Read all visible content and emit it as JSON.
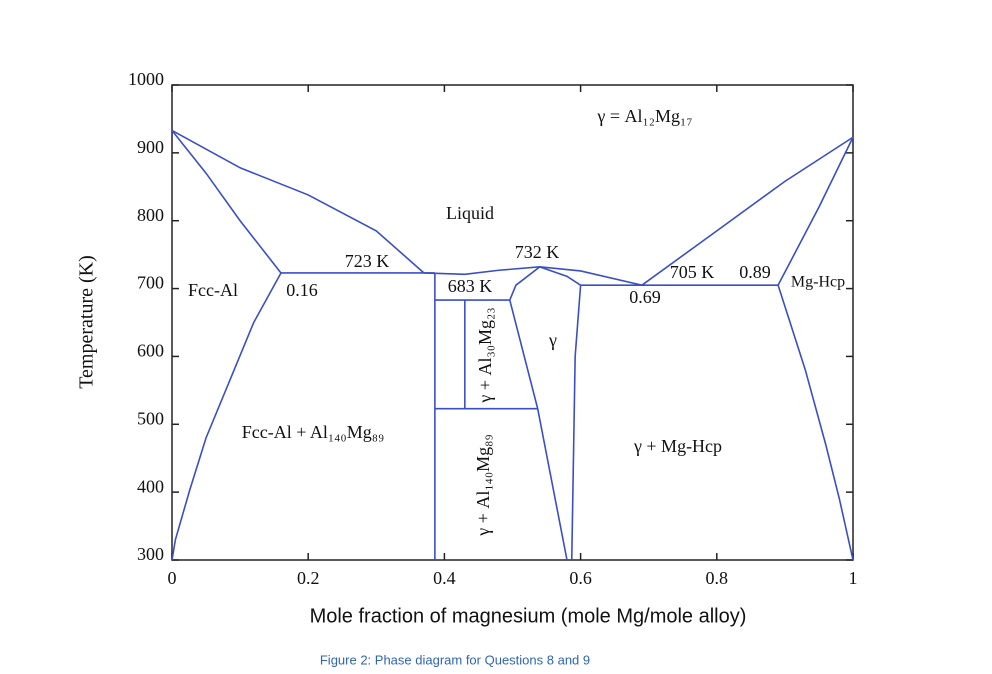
{
  "chart_data": {
    "type": "phase",
    "x_label": "Mole fraction of magnesium (mole Mg/mole alloy)",
    "y_label": "Temperature (K)",
    "caption": "Figure 2: Phase diagram for Questions 8 and 9",
    "xlim": [
      0,
      1
    ],
    "ylim": [
      300,
      1000
    ],
    "xticks": [
      0,
      0.2,
      0.4,
      0.6,
      0.8,
      1
    ],
    "yticks": [
      300,
      400,
      500,
      600,
      700,
      800,
      900,
      1000
    ],
    "color": "#3a4fc4",
    "lines": [
      {
        "x": [
          0,
          0.1,
          0.2,
          0.3,
          0.37
        ],
        "values": [
          933,
          878,
          838,
          785,
          723
        ]
      },
      {
        "x": [
          0,
          0.05,
          0.1,
          0.16
        ],
        "values": [
          933,
          870,
          800,
          723
        ]
      },
      {
        "x": [
          0.16,
          0.12,
          0.085,
          0.05,
          0.026,
          0.005,
          0
        ],
        "values": [
          723,
          650,
          565,
          480,
          403,
          330,
          300
        ]
      },
      {
        "x": [
          0.16,
          0.386
        ],
        "values": [
          723,
          723
        ]
      },
      {
        "x": [
          0.37,
          0.43,
          0.48,
          0.54,
          0.6,
          0.69
        ],
        "values": [
          723,
          721,
          727,
          732,
          726,
          705
        ]
      },
      {
        "x": [
          0.54,
          0.505,
          0.496,
          0.537,
          0.58
        ],
        "values": [
          732,
          705,
          683,
          523,
          300
        ]
      },
      {
        "x": [
          0.54,
          0.58,
          0.6,
          0.592,
          0.587
        ],
        "values": [
          732,
          718,
          705,
          600,
          300
        ]
      },
      {
        "x": [
          0.6,
          0.89
        ],
        "values": [
          705,
          705
        ]
      },
      {
        "x": [
          0.69,
          0.8,
          0.9,
          1
        ],
        "values": [
          705,
          785,
          858,
          923
        ]
      },
      {
        "x": [
          0.89,
          0.95,
          1
        ],
        "values": [
          705,
          820,
          923
        ]
      },
      {
        "x": [
          0.89,
          0.93,
          0.96,
          0.98,
          1
        ],
        "values": [
          705,
          580,
          470,
          390,
          300
        ]
      },
      {
        "x": [
          0.386,
          0.496
        ],
        "values": [
          683,
          683
        ]
      },
      {
        "x": [
          0.386,
          0.386
        ],
        "values": [
          723,
          300
        ]
      },
      {
        "x": [
          0.43,
          0.43
        ],
        "values": [
          683,
          523
        ]
      },
      {
        "x": [
          0.386,
          0.537
        ],
        "values": [
          523,
          523
        ]
      }
    ],
    "annotations": [
      "γ = Al₁₂Mg₁₇",
      "Liquid",
      "723 K",
      "732 K",
      "683 K",
      "705 K",
      "0.89",
      "Mg-Hcp",
      "Fcc-Al",
      "0.16",
      "0.69",
      "γ",
      "Fcc-Al + Al₁₄₀Mg₈₉",
      "γ + Mg-Hcp",
      "γ + Al₃₀Mg₂₃",
      "γ + Al₁₄₀Mg₈₉"
    ]
  }
}
